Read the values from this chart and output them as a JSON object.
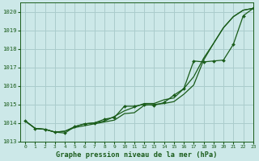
{
  "title": "Graphe pression niveau de la mer (hPa)",
  "bg_color": "#cce8e8",
  "grid_color": "#aacccc",
  "line_color": "#1a5c1a",
  "marker_color": "#1a5c1a",
  "xlim": [
    -0.5,
    23
  ],
  "ylim": [
    1013.0,
    1020.5
  ],
  "yticks": [
    1013,
    1014,
    1015,
    1016,
    1017,
    1018,
    1019,
    1020
  ],
  "xticks": [
    0,
    1,
    2,
    3,
    4,
    5,
    6,
    7,
    8,
    9,
    10,
    11,
    12,
    13,
    14,
    15,
    16,
    17,
    18,
    19,
    20,
    21,
    22,
    23
  ],
  "series1": [
    1014.1,
    1013.7,
    1013.65,
    1013.5,
    1013.55,
    1013.75,
    1013.85,
    1013.95,
    1014.05,
    1014.15,
    1014.5,
    1014.55,
    1014.95,
    1015.0,
    1015.05,
    1015.15,
    1015.55,
    1016.05,
    1017.4,
    1018.3,
    1019.15,
    1019.75,
    1020.1,
    1020.2
  ],
  "series2": [
    1014.1,
    1013.7,
    1013.65,
    1013.5,
    1013.55,
    1013.8,
    1013.95,
    1014.0,
    1014.1,
    1014.35,
    1014.65,
    1014.85,
    1015.05,
    1015.05,
    1015.25,
    1015.35,
    1015.85,
    1016.5,
    1017.5,
    1018.3,
    1019.15,
    1019.75,
    1020.1,
    1020.2
  ],
  "series3": [
    1014.1,
    1013.7,
    1013.65,
    1013.5,
    1013.45,
    1013.8,
    1013.95,
    1014.0,
    1014.2,
    1014.3,
    1014.9,
    1014.9,
    1015.0,
    1014.95,
    1015.1,
    1015.5,
    1015.85,
    1017.35,
    1017.3,
    1017.35,
    1017.4,
    1018.25,
    1019.8,
    1020.2
  ]
}
